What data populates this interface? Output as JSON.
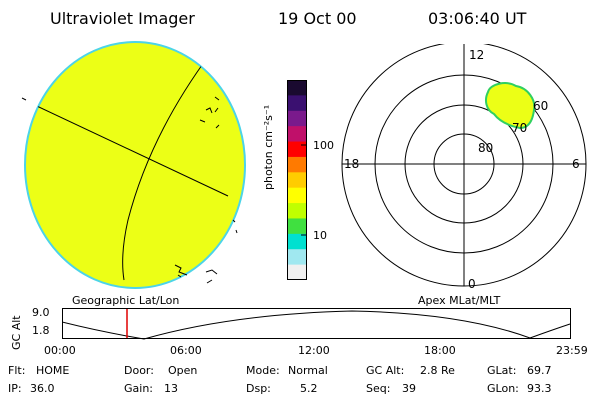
{
  "header": {
    "instrument": "Ultraviolet Imager",
    "date": "19 Oct 00",
    "time": "03:06:40 UT"
  },
  "colorbar": {
    "unit_label": "photon cm⁻²s⁻¹",
    "tick_labels": [
      "100",
      "10"
    ],
    "colors_top_to_bottom": [
      "#1a0a30",
      "#3a1070",
      "#7a1a8c",
      "#c0106a",
      "#ff0000",
      "#ff7a00",
      "#ffcc00",
      "#ffff00",
      "#c0ff00",
      "#40e040",
      "#00e0d0",
      "#a0e8f0",
      "#f0f0f0"
    ]
  },
  "left_panel": {
    "caption": "Geographic Lat/Lon",
    "fill_color": "#ecff16",
    "edge_color": "#4cd4e8"
  },
  "right_panel": {
    "caption": "Apex MLat/MLT",
    "mlt_labels": {
      "top": "12",
      "left": "18",
      "right": "6",
      "bottom": "0"
    },
    "lat_labels": [
      "60",
      "70",
      "80"
    ],
    "fill_color": "#ecff16",
    "edge_color": "#30d060"
  },
  "timeline": {
    "y_label": "GC Alt",
    "y_ticks": [
      "9.0",
      "1.8"
    ],
    "x_ticks": [
      "00:00",
      "06:00",
      "12:00",
      "18:00",
      "23:59"
    ],
    "marker_color": "#e00000"
  },
  "status": {
    "flt": {
      "label": "Flt:",
      "value": "HOME"
    },
    "ip": {
      "label": "IP:",
      "value": "36.0"
    },
    "door": {
      "label": "Door:",
      "value": "Open"
    },
    "gain": {
      "label": "Gain:",
      "value": "13"
    },
    "mode": {
      "label": "Mode:",
      "value": "Normal"
    },
    "dsp": {
      "label": "Dsp:",
      "value": "5.2"
    },
    "gcalt": {
      "label": "GC Alt:",
      "value": "2.8 Re"
    },
    "seq": {
      "label": "Seq:",
      "value": "39"
    },
    "glat": {
      "label": "GLat:",
      "value": "69.7"
    },
    "glon": {
      "label": "GLon:",
      "value": "93.3"
    }
  }
}
